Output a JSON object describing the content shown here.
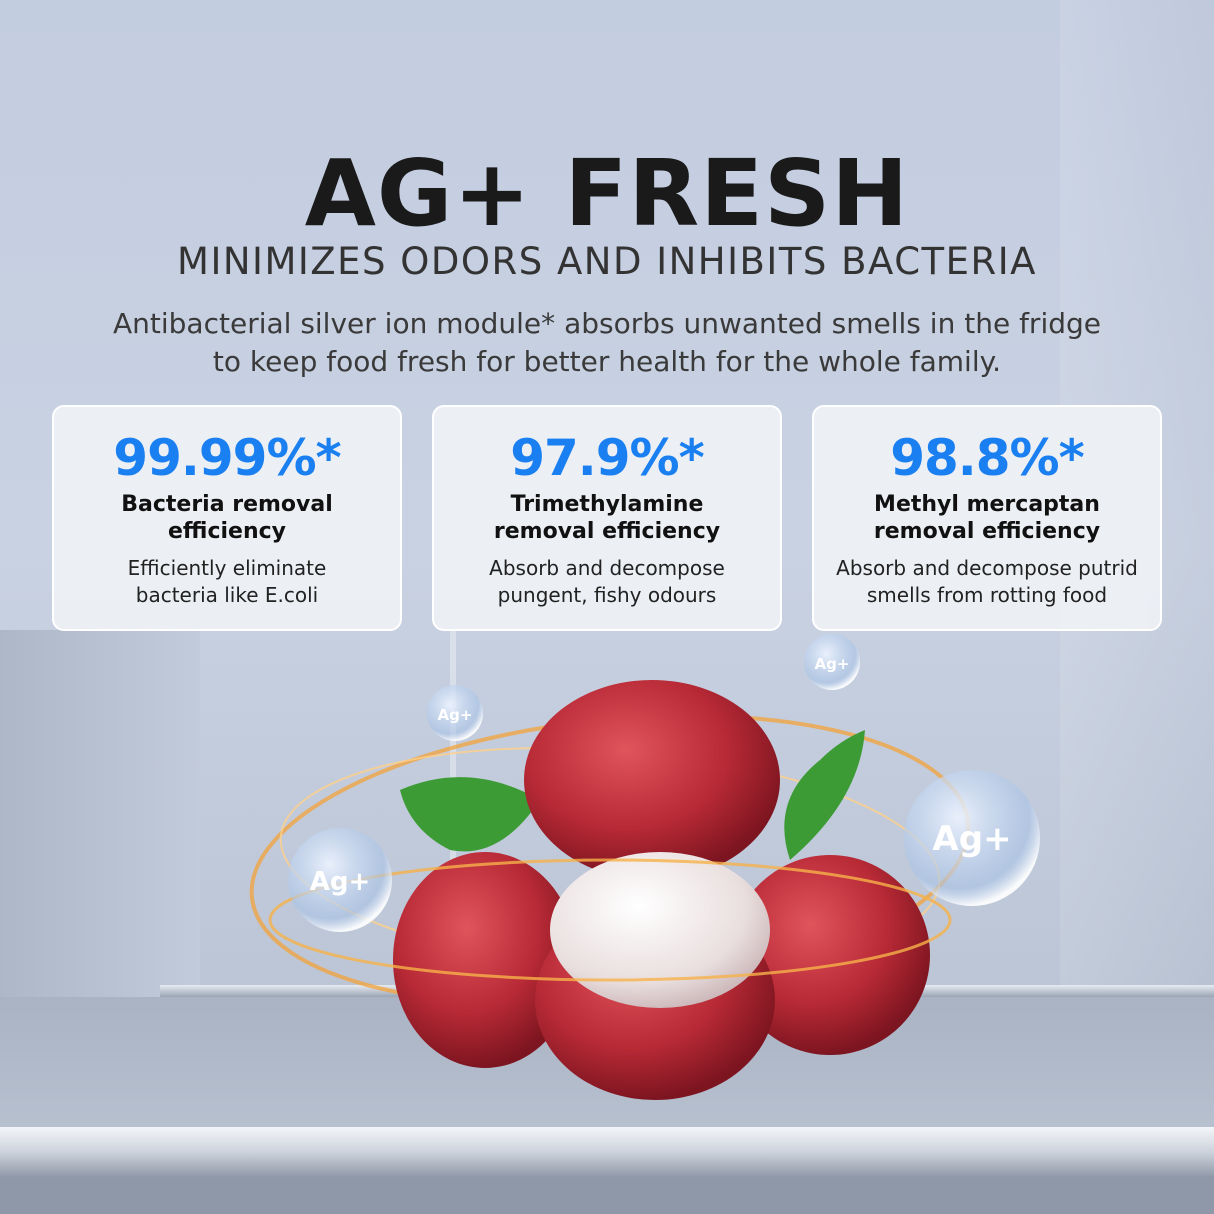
{
  "header": {
    "title": "AG+ FRESH",
    "subtitle": "MINIMIZES ODORS AND INHIBITS BACTERIA",
    "description_line1": "Antibacterial silver ion module* absorbs unwanted smells in the fridge",
    "description_line2": "to keep food fresh for better health for the whole family."
  },
  "cards": [
    {
      "value": "99.99%*",
      "heading_line1": "Bacteria removal",
      "heading_line2": "efficiency",
      "body_line1": "Efficiently eliminate",
      "body_line2": "bacteria like E.coli"
    },
    {
      "value": "97.9%*",
      "heading_line1": "Trimethylamine",
      "heading_line2": "removal efficiency",
      "body_line1": "Absorb and decompose",
      "body_line2": "pungent, fishy odours"
    },
    {
      "value": "98.8%*",
      "heading_line1": "Methyl mercaptan",
      "heading_line2": "removal efficiency",
      "body_line1": "Absorb and decompose putrid",
      "body_line2": "smells from rotting food"
    }
  ],
  "bubble_label": "Ag+",
  "colors": {
    "accent": "#1a7ff0",
    "lychee": "#c0323f",
    "leaf": "#3d9b35",
    "swirl": "#f3a33a"
  }
}
